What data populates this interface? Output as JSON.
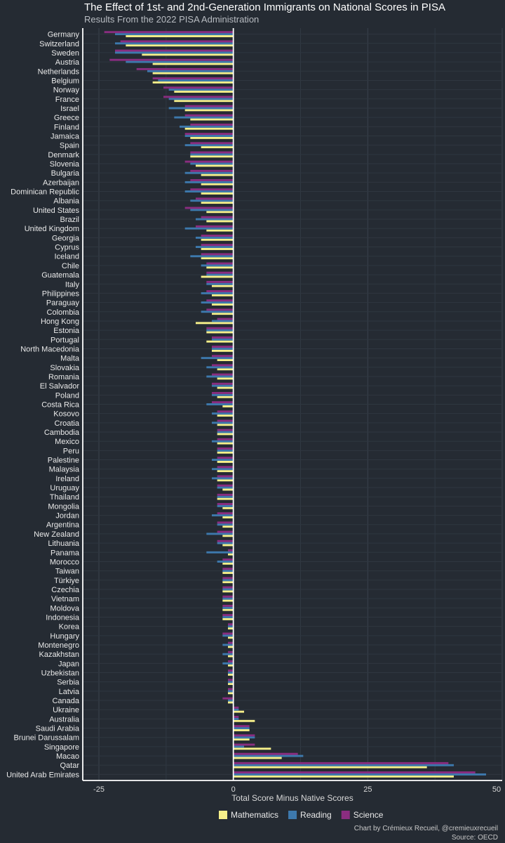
{
  "chart_data": {
    "type": "bar",
    "orientation": "horizontal",
    "title": "The Effect of 1st- and 2nd-Generation Immigrants on National Scores in PISA",
    "subtitle": "Results From the 2022 PISA Administration",
    "xlabel": "Total Score Minus Native Scores",
    "ylabel": "",
    "xlim": [
      -28,
      50
    ],
    "xticks": [
      -25,
      0,
      25,
      50
    ],
    "legend_position": "bottom",
    "colors": {
      "Mathematics": "#f7f08a",
      "Reading": "#3d79ad",
      "Science": "#8a2d80"
    },
    "categories": [
      "Germany",
      "Switzerland",
      "Sweden",
      "Austria",
      "Netherlands",
      "Belgium",
      "Norway",
      "France",
      "Israel",
      "Greece",
      "Finland",
      "Jamaica",
      "Spain",
      "Denmark",
      "Slovenia",
      "Bulgaria",
      "Azerbaijan",
      "Dominican Republic",
      "Albania",
      "United States",
      "Brazil",
      "United Kingdom",
      "Georgia",
      "Cyprus",
      "Iceland",
      "Chile",
      "Guatemala",
      "Italy",
      "Philippines",
      "Paraguay",
      "Colombia",
      "Hong Kong",
      "Estonia",
      "Portugal",
      "North Macedonia",
      "Malta",
      "Slovakia",
      "Romania",
      "El Salvador",
      "Poland",
      "Costa Rica",
      "Kosovo",
      "Croatia",
      "Cambodia",
      "Mexico",
      "Peru",
      "Palestine",
      "Malaysia",
      "Ireland",
      "Uruguay",
      "Thailand",
      "Mongolia",
      "Jordan",
      "Argentina",
      "New Zealand",
      "Lithuania",
      "Panama",
      "Morocco",
      "Taiwan",
      "Türkiye",
      "Czechia",
      "Vietnam",
      "Moldova",
      "Indonesia",
      "Korea",
      "Hungary",
      "Montenegro",
      "Kazakhstan",
      "Japan",
      "Uzbekistan",
      "Serbia",
      "Latvia",
      "Canada",
      "Ukraine",
      "Australia",
      "Saudi Arabia",
      "Brunei Darussalam",
      "Singapore",
      "Macao",
      "Qatar",
      "United Arab Emirates"
    ],
    "series": [
      {
        "name": "Mathematics",
        "values": [
          -20,
          -20,
          -17,
          -15,
          -15,
          -15,
          -11,
          -11,
          -9,
          -8,
          -9,
          -8,
          -6,
          -8,
          -7,
          -6,
          -6,
          -6,
          -6,
          -5,
          -5,
          -5,
          -6,
          -6,
          -6,
          -5,
          -6,
          -4,
          -4,
          -4,
          -4,
          -7,
          -5,
          -5,
          -4,
          -3,
          -3,
          -3,
          -3,
          -3,
          -2,
          -3,
          -3,
          -3,
          -3,
          -3,
          -3,
          -3,
          -3,
          -2,
          -3,
          -2,
          -2,
          -2,
          -2,
          -2,
          -1,
          -2,
          -2,
          -2,
          -2,
          -2,
          -2,
          -2,
          -1,
          -1,
          -1,
          -1,
          -1,
          -1,
          -1,
          -1,
          -1,
          2,
          4,
          3,
          3,
          7,
          9,
          36,
          41
        ]
      },
      {
        "name": "Reading",
        "values": [
          -22,
          -22,
          -22,
          -20,
          -16,
          -14,
          -12,
          -12,
          -12,
          -11,
          -10,
          -9,
          -9,
          -8,
          -8,
          -9,
          -9,
          -9,
          -8,
          -8,
          -7,
          -9,
          -7,
          -7,
          -8,
          -6,
          -5,
          -5,
          -6,
          -6,
          -6,
          -4,
          -5,
          -4,
          -4,
          -6,
          -5,
          -5,
          -4,
          -4,
          -5,
          -4,
          -4,
          -3,
          -4,
          -3,
          -4,
          -4,
          -4,
          -3,
          -3,
          -3,
          -4,
          -3,
          -5,
          -3,
          -5,
          -3,
          -2,
          -2,
          -2,
          -2,
          -2,
          -2,
          -1,
          -2,
          -2,
          -2,
          -2,
          -1,
          -1,
          -1,
          -1,
          1,
          1,
          3,
          4,
          2,
          13,
          41,
          47
        ]
      },
      {
        "name": "Science",
        "values": [
          -24,
          -21,
          -22,
          -23,
          -18,
          -15,
          -13,
          -13,
          -9,
          -9,
          -8,
          -9,
          -8,
          -8,
          -9,
          -8,
          -8,
          -8,
          -7,
          -9,
          -6,
          -7,
          -6,
          -6,
          -6,
          -5,
          -5,
          -5,
          -5,
          -5,
          -5,
          -3,
          -5,
          -4,
          -4,
          -4,
          -4,
          -4,
          -4,
          -4,
          -4,
          -3,
          -3,
          -3,
          -3,
          -3,
          -3,
          -3,
          -3,
          -3,
          -3,
          -3,
          -3,
          -3,
          -3,
          -3,
          -1,
          -2,
          -2,
          -2,
          -2,
          -2,
          -2,
          -2,
          -1,
          -2,
          -1,
          -1,
          -1,
          -1,
          -1,
          -1,
          -2,
          1,
          1,
          3,
          4,
          4,
          12,
          40,
          45
        ]
      }
    ]
  },
  "caption": {
    "line1": "Chart by Crémieux Recueil, @cremieuxrecueil",
    "line2": "Source: OECD"
  }
}
